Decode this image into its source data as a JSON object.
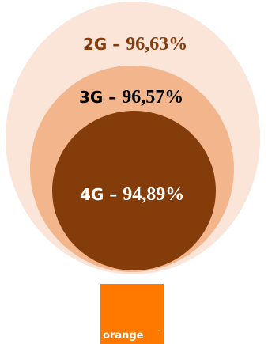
{
  "colors": {
    "outer": "#fbe4d8",
    "middle": "#f2b58c",
    "inner": "#843c0b",
    "label_2g": "#843c0b",
    "label_3g": "#000000",
    "label_4g": "#ffffff",
    "logo_bg": "#ff7900",
    "logo_text": "#ffffff"
  },
  "diagram": {
    "circles": [
      {
        "name": "2G",
        "value": 96.63,
        "gen": "2G",
        "dash": " – ",
        "pct": "96,63%"
      },
      {
        "name": "3G",
        "value": 96.57,
        "gen": "3G",
        "dash": " – ",
        "pct": "96,57%"
      },
      {
        "name": "4G",
        "value": 94.89,
        "gen": "4G",
        "dash": " – ",
        "pct": "94,89%"
      }
    ]
  },
  "logo": {
    "text": "orange",
    "trademark": "™",
    "icon": "orange-brand-logo"
  }
}
